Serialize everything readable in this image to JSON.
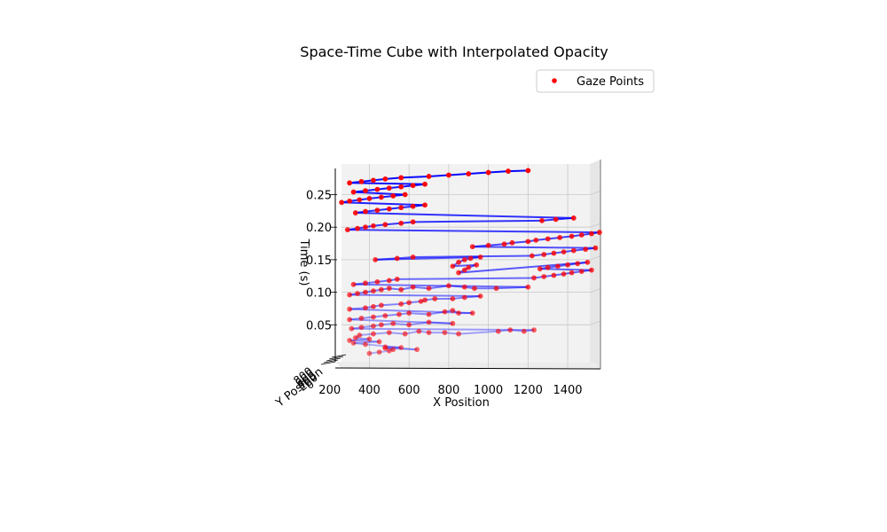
{
  "chart_data": {
    "type": "scatter",
    "subtype": "3d-space-time-cube",
    "title": "Space-Time Cube with Interpolated Opacity",
    "xlabel": "X Position",
    "ylabel": "Y Position",
    "zlabel": "Time (s)",
    "x_ticks": [
      "200",
      "400",
      "600",
      "800",
      "1000",
      "1200",
      "1400"
    ],
    "y_ticks": [
      "0",
      "200",
      "400",
      "600",
      "800"
    ],
    "z_ticks": [
      "0.05",
      "0.10",
      "0.15",
      "0.20",
      "0.25"
    ],
    "xlim": [
      200,
      1560
    ],
    "zlim": [
      0,
      0.29
    ],
    "legend": {
      "label": "Gaze Points",
      "placement": "top-right"
    },
    "colors": {
      "points": "#ff0000",
      "trajectory": "#0000ff",
      "pane": "#f2f2f2",
      "grid": "#b0b0b0"
    },
    "series": [
      {
        "name": "Gaze Points",
        "points": [
          [
            400,
            0.006
          ],
          [
            450,
            0.008
          ],
          [
            500,
            0.01
          ],
          [
            520,
            0.012
          ],
          [
            480,
            0.014
          ],
          [
            640,
            0.012
          ],
          [
            480,
            0.016
          ],
          [
            560,
            0.015
          ],
          [
            380,
            0.02
          ],
          [
            320,
            0.022
          ],
          [
            450,
            0.024
          ],
          [
            300,
            0.026
          ],
          [
            400,
            0.028
          ],
          [
            330,
            0.03
          ],
          [
            350,
            0.034
          ],
          [
            420,
            0.036
          ],
          [
            500,
            0.038
          ],
          [
            580,
            0.036
          ],
          [
            650,
            0.04
          ],
          [
            700,
            0.038
          ],
          [
            780,
            0.038
          ],
          [
            850,
            0.036
          ],
          [
            1050,
            0.04
          ],
          [
            1110,
            0.042
          ],
          [
            1180,
            0.04
          ],
          [
            1230,
            0.042
          ],
          [
            310,
            0.044
          ],
          [
            360,
            0.046
          ],
          [
            420,
            0.048
          ],
          [
            460,
            0.05
          ],
          [
            520,
            0.052
          ],
          [
            600,
            0.05
          ],
          [
            700,
            0.054
          ],
          [
            820,
            0.052
          ],
          [
            300,
            0.058
          ],
          [
            360,
            0.06
          ],
          [
            420,
            0.062
          ],
          [
            480,
            0.064
          ],
          [
            550,
            0.066
          ],
          [
            600,
            0.068
          ],
          [
            700,
            0.066
          ],
          [
            780,
            0.07
          ],
          [
            820,
            0.072
          ],
          [
            850,
            0.068
          ],
          [
            920,
            0.068
          ],
          [
            300,
            0.074
          ],
          [
            380,
            0.076
          ],
          [
            420,
            0.078
          ],
          [
            460,
            0.08
          ],
          [
            560,
            0.082
          ],
          [
            600,
            0.084
          ],
          [
            660,
            0.086
          ],
          [
            680,
            0.088
          ],
          [
            730,
            0.09
          ],
          [
            820,
            0.09
          ],
          [
            880,
            0.092
          ],
          [
            960,
            0.094
          ],
          [
            300,
            0.096
          ],
          [
            340,
            0.098
          ],
          [
            380,
            0.1
          ],
          [
            420,
            0.102
          ],
          [
            460,
            0.104
          ],
          [
            500,
            0.106
          ],
          [
            560,
            0.104
          ],
          [
            620,
            0.108
          ],
          [
            700,
            0.106
          ],
          [
            800,
            0.11
          ],
          [
            880,
            0.108
          ],
          [
            930,
            0.106
          ],
          [
            1040,
            0.106
          ],
          [
            1200,
            0.108
          ],
          [
            320,
            0.112
          ],
          [
            380,
            0.114
          ],
          [
            440,
            0.116
          ],
          [
            500,
            0.118
          ],
          [
            540,
            0.12
          ],
          [
            1230,
            0.122
          ],
          [
            1280,
            0.124
          ],
          [
            1330,
            0.126
          ],
          [
            1380,
            0.128
          ],
          [
            1420,
            0.13
          ],
          [
            1470,
            0.132
          ],
          [
            1520,
            0.134
          ],
          [
            1260,
            0.136
          ],
          [
            1300,
            0.138
          ],
          [
            1350,
            0.14
          ],
          [
            1400,
            0.142
          ],
          [
            1450,
            0.144
          ],
          [
            1500,
            0.146
          ],
          [
            850,
            0.13
          ],
          [
            880,
            0.134
          ],
          [
            900,
            0.138
          ],
          [
            940,
            0.142
          ],
          [
            820,
            0.14
          ],
          [
            850,
            0.146
          ],
          [
            880,
            0.15
          ],
          [
            910,
            0.152
          ],
          [
            960,
            0.154
          ],
          [
            430,
            0.15
          ],
          [
            540,
            0.152
          ],
          [
            620,
            0.154
          ],
          [
            1220,
            0.156
          ],
          [
            1280,
            0.158
          ],
          [
            1330,
            0.16
          ],
          [
            1380,
            0.162
          ],
          [
            1430,
            0.164
          ],
          [
            1490,
            0.166
          ],
          [
            1540,
            0.168
          ],
          [
            920,
            0.17
          ],
          [
            1000,
            0.172
          ],
          [
            1080,
            0.174
          ],
          [
            1120,
            0.176
          ],
          [
            1200,
            0.178
          ],
          [
            1240,
            0.18
          ],
          [
            1300,
            0.182
          ],
          [
            1360,
            0.184
          ],
          [
            1420,
            0.186
          ],
          [
            1470,
            0.188
          ],
          [
            1520,
            0.19
          ],
          [
            1560,
            0.192
          ],
          [
            290,
            0.196
          ],
          [
            340,
            0.198
          ],
          [
            380,
            0.2
          ],
          [
            420,
            0.202
          ],
          [
            480,
            0.204
          ],
          [
            560,
            0.206
          ],
          [
            620,
            0.208
          ],
          [
            1270,
            0.21
          ],
          [
            1340,
            0.212
          ],
          [
            1430,
            0.214
          ],
          [
            330,
            0.222
          ],
          [
            380,
            0.224
          ],
          [
            440,
            0.226
          ],
          [
            500,
            0.228
          ],
          [
            560,
            0.23
          ],
          [
            620,
            0.232
          ],
          [
            680,
            0.234
          ],
          [
            260,
            0.238
          ],
          [
            300,
            0.24
          ],
          [
            350,
            0.242
          ],
          [
            400,
            0.244
          ],
          [
            460,
            0.246
          ],
          [
            520,
            0.248
          ],
          [
            580,
            0.25
          ],
          [
            320,
            0.254
          ],
          [
            380,
            0.256
          ],
          [
            440,
            0.258
          ],
          [
            500,
            0.26
          ],
          [
            560,
            0.262
          ],
          [
            620,
            0.264
          ],
          [
            680,
            0.266
          ],
          [
            300,
            0.268
          ],
          [
            360,
            0.27
          ],
          [
            420,
            0.272
          ],
          [
            480,
            0.274
          ],
          [
            560,
            0.276
          ],
          [
            700,
            0.278
          ],
          [
            800,
            0.28
          ],
          [
            900,
            0.282
          ],
          [
            1000,
            0.284
          ],
          [
            1100,
            0.286
          ],
          [
            1200,
            0.287
          ]
        ]
      }
    ]
  }
}
